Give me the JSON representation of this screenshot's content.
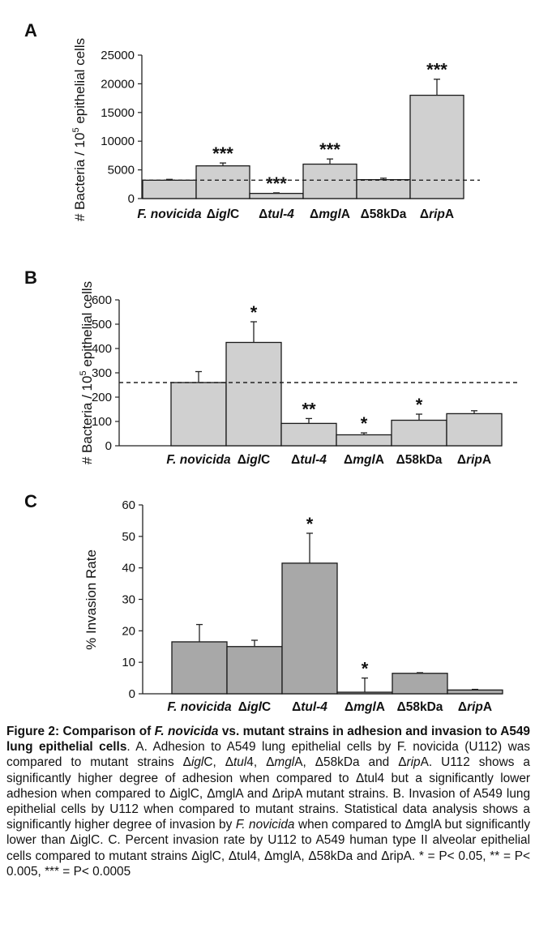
{
  "chart_data": [
    {
      "panel_label": "A",
      "type": "bar",
      "categories": [
        {
          "main": "F. novicida",
          "italic": true
        },
        {
          "prefix": "Δ",
          "italic_part": "igl",
          "suffix": "C"
        },
        {
          "prefix": "Δ",
          "italic_part": "tul-4",
          "suffix": ""
        },
        {
          "prefix": "Δ",
          "italic_part": "mgl",
          "suffix": "A"
        },
        {
          "prefix": "Δ58kDa",
          "italic_part": "",
          "suffix": ""
        },
        {
          "prefix": "Δ",
          "italic_part": "rip",
          "suffix": "A"
        }
      ],
      "values": [
        3200,
        5700,
        900,
        6000,
        3300,
        18000
      ],
      "errors": [
        150,
        500,
        100,
        900,
        250,
        2800
      ],
      "significance": [
        "",
        "***",
        "***",
        "***",
        "",
        "***"
      ],
      "reference_line": 3200,
      "ylim": [
        0,
        25000
      ],
      "yticks": [
        0,
        5000,
        10000,
        15000,
        20000,
        25000
      ],
      "ylabel": "# Bacteria / 10",
      "ylabel_sup": "5",
      "ylabel_rest": " epithelial cells",
      "bar_color": "#d0d0d0"
    },
    {
      "panel_label": "B",
      "type": "bar",
      "categories": [
        {
          "main": "F. novicida",
          "italic": true
        },
        {
          "prefix": "Δ",
          "italic_part": "igl",
          "suffix": "C"
        },
        {
          "prefix": "Δ",
          "italic_part": "tul-4",
          "suffix": ""
        },
        {
          "prefix": "Δ",
          "italic_part": "mgl",
          "suffix": "A"
        },
        {
          "prefix": "Δ58kDa",
          "italic_part": "",
          "suffix": ""
        },
        {
          "prefix": "Δ",
          "italic_part": "rip",
          "suffix": "A"
        }
      ],
      "values": [
        260,
        425,
        92,
        45,
        105,
        132
      ],
      "errors": [
        45,
        85,
        20,
        8,
        25,
        12
      ],
      "significance": [
        "",
        "*",
        "**",
        "*",
        "*",
        ""
      ],
      "reference_line": 260,
      "ylim": [
        0,
        600
      ],
      "yticks": [
        0,
        100,
        200,
        300,
        400,
        500,
        600
      ],
      "ylabel": "# Bacteria / 10",
      "ylabel_sup": "5",
      "ylabel_rest": " epithelial cells",
      "bar_color": "#d0d0d0"
    },
    {
      "panel_label": "C",
      "type": "bar",
      "categories": [
        {
          "main": "F. novicida",
          "italic": true
        },
        {
          "prefix": "Δ",
          "italic_part": "igl",
          "suffix": "C"
        },
        {
          "prefix": "Δ",
          "italic_part": "tul-4",
          "suffix": ""
        },
        {
          "prefix": "Δ",
          "italic_part": "mgl",
          "suffix": "A"
        },
        {
          "prefix": "Δ58kDa",
          "italic_part": "",
          "suffix": ""
        },
        {
          "prefix": "Δ",
          "italic_part": "rip",
          "suffix": "A"
        }
      ],
      "values": [
        16.5,
        15,
        41.5,
        0.5,
        6.5,
        1.2
      ],
      "errors": [
        5.5,
        2,
        9.5,
        4.5,
        0.2,
        0.2
      ],
      "significance": [
        "",
        "",
        "*",
        "*",
        "",
        ""
      ],
      "reference_line": null,
      "ylim": [
        0,
        60
      ],
      "yticks": [
        0,
        10,
        20,
        30,
        40,
        50,
        60
      ],
      "ylabel": "% Invasion Rate",
      "ylabel_sup": "",
      "ylabel_rest": "",
      "bar_color": "#a8a8a8"
    }
  ],
  "caption": [
    {
      "t": "Figure 2: Comparison of ",
      "s": "b"
    },
    {
      "t": "F. novicida",
      "s": "bi"
    },
    {
      "t": " vs. mutant strains in adhesion and invasion to A549 lung epithelial cells",
      "s": "b"
    },
    {
      "t": ". A. Adhesion to A549 lung epithelial cells by F. novicida (U112) was compared to mutant strains Δ",
      "s": ""
    },
    {
      "t": "igl",
      "s": "i"
    },
    {
      "t": "C, Δ",
      "s": ""
    },
    {
      "t": "tul",
      "s": "i"
    },
    {
      "t": "4, Δ",
      "s": ""
    },
    {
      "t": "mgl",
      "s": "i"
    },
    {
      "t": "A, Δ58kDa and Δ",
      "s": ""
    },
    {
      "t": "rip",
      "s": "i"
    },
    {
      "t": "A. U112 shows a significantly higher degree of adhesion when compared to Δtul4 but a significantly lower adhesion when compared to ΔiglC, ΔmglA and ΔripA mutant strains.  B. Invasion of A549 lung epithelial cells by U112 when compared to mutant strains. Statistical data analysis shows a significantly higher degree of invasion by ",
      "s": ""
    },
    {
      "t": "F. novicida",
      "s": "i"
    },
    {
      "t": " when compared to ΔmglA but significantly lower than ΔiglC.  C. Percent invasion rate by U112 to A549 human type II alveolar epithelial cells compared to mutant strains ΔiglC, Δtul4, ΔmglA, Δ58kDa and ΔripA. * = P< 0.05, ** = P< 0.005, *** = P< 0.0005",
      "s": ""
    }
  ]
}
